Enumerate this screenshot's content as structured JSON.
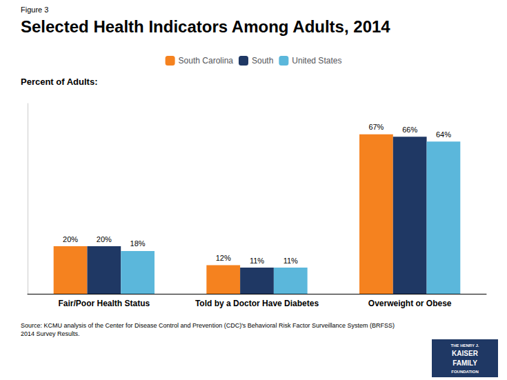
{
  "chart_data": {
    "type": "bar",
    "title": "Selected Health Indicators Among Adults, 2014",
    "ylabel": "Percent of Adults:",
    "categories": [
      "Fair/Poor Health Status",
      "Told by a Doctor Have Diabetes",
      "Overweight or Obese"
    ],
    "series": [
      {
        "name": "South Carolina",
        "color": "#F5821F",
        "values": [
          20,
          12,
          67
        ],
        "value_labels": [
          "20%",
          "12%",
          "67%"
        ]
      },
      {
        "name": "South",
        "color": "#1F3864",
        "values": [
          20,
          11,
          66
        ],
        "value_labels": [
          "20%",
          "11%",
          "66%"
        ]
      },
      {
        "name": "United States",
        "color": "#5BB7DB",
        "values": [
          18,
          11,
          64
        ],
        "value_labels": [
          "18%",
          "11%",
          "64%"
        ]
      }
    ],
    "ylim": [
      0,
      80
    ],
    "yticks": [],
    "tick_labels": "x",
    "grid": false,
    "legend": "top",
    "data_labels": true,
    "annotations": [
      "Figure 3",
      "Source: KCMU analysis of the Center for Disease Control and Prevention (CDC)'s Behavioral Risk Factor Surveillance System (BRFSS)\n2014 Survey Results.",
      "THE HENRY J.",
      "KAISER",
      "FAMILY",
      "FOUNDATION"
    ]
  }
}
